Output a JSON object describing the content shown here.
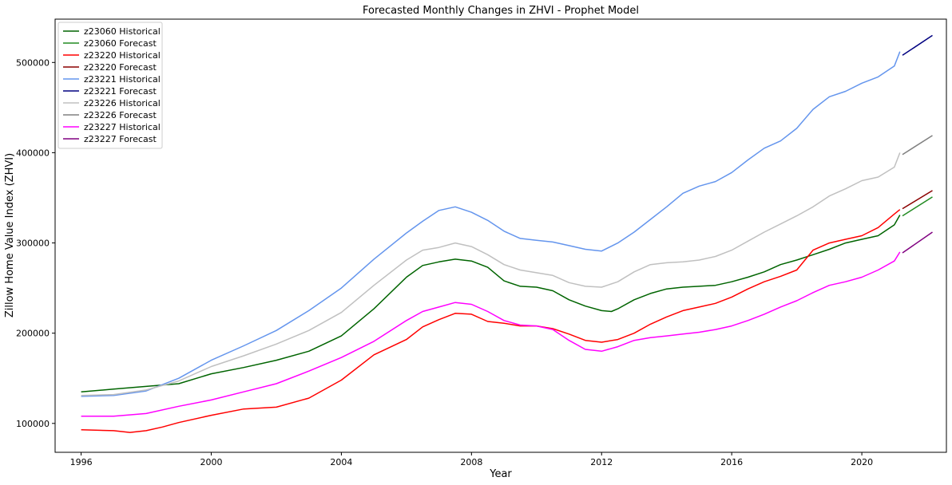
{
  "chart_data": {
    "type": "line",
    "title": "Forecasted Monthly Changes in ZHVI - Prophet Model",
    "xlabel": "Year",
    "ylabel": "Zillow Home Value Index (ZHVI)",
    "xlim": [
      1995.2,
      2022.6
    ],
    "ylim": [
      68000,
      548000
    ],
    "xticks": [
      1996,
      2000,
      2004,
      2008,
      2012,
      2016,
      2020
    ],
    "yticks": [
      100000,
      200000,
      300000,
      400000,
      500000
    ],
    "legend_position": "top-left",
    "grid": false,
    "series": [
      {
        "name": "z23060 Historical",
        "color": "#006400",
        "x": [
          1996.0,
          1997.0,
          1998.0,
          1999.0,
          2000.0,
          2001.0,
          2002.0,
          2003.0,
          2004.0,
          2005.0,
          2006.0,
          2006.5,
          2007.0,
          2007.5,
          2008.0,
          2008.5,
          2009.0,
          2009.5,
          2010.0,
          2010.5,
          2011.0,
          2011.5,
          2012.0,
          2012.3,
          2012.5,
          2013.0,
          2013.5,
          2014.0,
          2014.5,
          2015.0,
          2015.5,
          2016.0,
          2016.5,
          2017.0,
          2017.5,
          2018.0,
          2018.5,
          2019.0,
          2019.5,
          2020.0,
          2020.5,
          2021.0,
          2021.17
        ],
        "values": [
          135000,
          138000,
          141000,
          144000,
          155000,
          162000,
          170000,
          180000,
          197000,
          227000,
          262000,
          275000,
          279000,
          282000,
          280000,
          273000,
          258000,
          252000,
          251000,
          247000,
          237000,
          230000,
          225000,
          224000,
          227000,
          237000,
          244000,
          249000,
          251000,
          252000,
          253000,
          257000,
          262000,
          268000,
          276000,
          281000,
          287000,
          293000,
          300000,
          304000,
          308000,
          320000,
          331000
        ]
      },
      {
        "name": "z23060 Forecast",
        "color": "#228B22",
        "x": [
          2021.25,
          2022.17
        ],
        "values": [
          330000,
          351000
        ]
      },
      {
        "name": "z23220 Historical",
        "color": "#FF0000",
        "x": [
          1996.0,
          1997.0,
          1997.5,
          1998.0,
          1998.5,
          1999.0,
          2000.0,
          2001.0,
          2002.0,
          2003.0,
          2004.0,
          2005.0,
          2006.0,
          2006.5,
          2007.0,
          2007.5,
          2008.0,
          2008.5,
          2009.0,
          2009.5,
          2010.0,
          2010.5,
          2011.0,
          2011.5,
          2012.0,
          2012.5,
          2013.0,
          2013.5,
          2014.0,
          2014.5,
          2015.0,
          2015.5,
          2016.0,
          2016.5,
          2017.0,
          2017.5,
          2018.0,
          2018.5,
          2019.0,
          2019.5,
          2020.0,
          2020.5,
          2021.0,
          2021.17
        ],
        "values": [
          93000,
          92000,
          90000,
          92000,
          96000,
          101000,
          109000,
          116000,
          118000,
          128000,
          148000,
          176000,
          193000,
          207000,
          215000,
          222000,
          221000,
          213000,
          211000,
          208000,
          208000,
          205000,
          199000,
          192000,
          190000,
          193000,
          200000,
          210000,
          218000,
          225000,
          229000,
          233000,
          240000,
          249000,
          257000,
          263000,
          270000,
          292000,
          300000,
          304000,
          308000,
          317000,
          332000,
          337000
        ]
      },
      {
        "name": "z23220 Forecast",
        "color": "#8B0000",
        "x": [
          2021.25,
          2022.17
        ],
        "values": [
          338000,
          358000
        ]
      },
      {
        "name": "z23221 Historical",
        "color": "#6495ED",
        "x": [
          1996.0,
          1997.0,
          1998.0,
          1999.0,
          2000.0,
          2001.0,
          2002.0,
          2003.0,
          2004.0,
          2005.0,
          2006.0,
          2006.5,
          2007.0,
          2007.5,
          2008.0,
          2008.5,
          2009.0,
          2009.5,
          2010.0,
          2010.5,
          2011.0,
          2011.5,
          2012.0,
          2012.5,
          2013.0,
          2013.5,
          2014.0,
          2014.5,
          2015.0,
          2015.5,
          2016.0,
          2016.5,
          2017.0,
          2017.5,
          2018.0,
          2018.5,
          2019.0,
          2019.5,
          2020.0,
          2020.5,
          2021.0,
          2021.17
        ],
        "values": [
          130000,
          131000,
          136000,
          150000,
          170000,
          186000,
          203000,
          225000,
          250000,
          282000,
          311000,
          324000,
          336000,
          340000,
          334000,
          325000,
          313000,
          305000,
          303000,
          301000,
          297000,
          293000,
          291000,
          300000,
          312000,
          326000,
          340000,
          355000,
          363000,
          368000,
          378000,
          392000,
          405000,
          413000,
          427000,
          448000,
          462000,
          468000,
          477000,
          484000,
          496000,
          512000
        ]
      },
      {
        "name": "z23221 Forecast",
        "color": "#000080",
        "x": [
          2021.25,
          2022.17
        ],
        "values": [
          508000,
          530000
        ]
      },
      {
        "name": "z23226 Historical",
        "color": "#C0C0C0",
        "x": [
          1996.0,
          1997.0,
          1998.0,
          1999.0,
          2000.0,
          2001.0,
          2002.0,
          2003.0,
          2004.0,
          2005.0,
          2006.0,
          2006.5,
          2007.0,
          2007.5,
          2008.0,
          2008.5,
          2009.0,
          2009.5,
          2010.0,
          2010.5,
          2011.0,
          2011.5,
          2012.0,
          2012.5,
          2013.0,
          2013.5,
          2014.0,
          2014.5,
          2015.0,
          2015.5,
          2016.0,
          2016.5,
          2017.0,
          2017.5,
          2018.0,
          2018.5,
          2019.0,
          2019.5,
          2020.0,
          2020.5,
          2021.0,
          2021.17
        ],
        "values": [
          131000,
          132000,
          137000,
          147000,
          163000,
          175000,
          188000,
          203000,
          223000,
          253000,
          281000,
          292000,
          295000,
          300000,
          296000,
          287000,
          276000,
          270000,
          267000,
          264000,
          256000,
          252000,
          251000,
          257000,
          268000,
          276000,
          278000,
          279000,
          281000,
          285000,
          292000,
          302000,
          312000,
          321000,
          330000,
          340000,
          352000,
          360000,
          369000,
          373000,
          384000,
          400000
        ]
      },
      {
        "name": "z23226 Forecast",
        "color": "#808080",
        "x": [
          2021.25,
          2022.17
        ],
        "values": [
          398000,
          419000
        ]
      },
      {
        "name": "z23227 Historical",
        "color": "#FF00FF",
        "x": [
          1996.0,
          1997.0,
          1998.0,
          1999.0,
          2000.0,
          2001.0,
          2002.0,
          2003.0,
          2004.0,
          2005.0,
          2006.0,
          2006.5,
          2007.0,
          2007.5,
          2008.0,
          2008.5,
          2009.0,
          2009.5,
          2010.0,
          2010.5,
          2011.0,
          2011.5,
          2012.0,
          2012.5,
          2013.0,
          2013.5,
          2014.0,
          2014.5,
          2015.0,
          2015.5,
          2016.0,
          2016.5,
          2017.0,
          2017.5,
          2018.0,
          2018.5,
          2019.0,
          2019.5,
          2020.0,
          2020.5,
          2021.0,
          2021.17
        ],
        "values": [
          108000,
          108000,
          111000,
          119000,
          126000,
          135000,
          144000,
          158000,
          173000,
          191000,
          214000,
          224000,
          229000,
          234000,
          232000,
          224000,
          214000,
          209000,
          208000,
          204000,
          192000,
          182000,
          180000,
          185000,
          192000,
          195000,
          197000,
          199000,
          201000,
          204000,
          208000,
          214000,
          221000,
          229000,
          236000,
          245000,
          253000,
          257000,
          262000,
          270000,
          280000,
          290000
        ]
      },
      {
        "name": "z23227 Forecast",
        "color": "#800080",
        "x": [
          2021.25,
          2022.17
        ],
        "values": [
          289000,
          312000
        ]
      }
    ]
  }
}
